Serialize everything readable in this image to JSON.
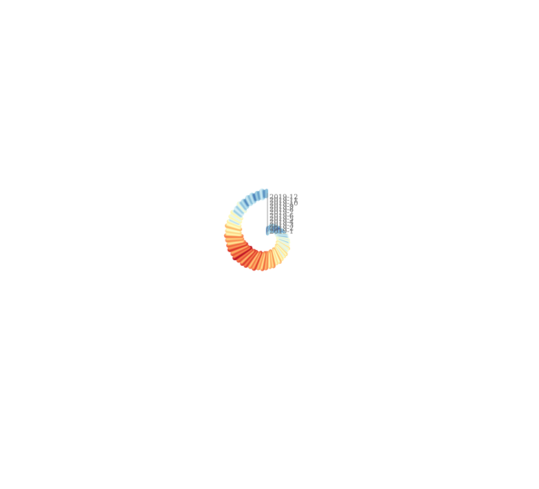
{
  "chart_data": {
    "type": "spiral-bar",
    "year": 2019,
    "months": [
      "2019-1",
      "2019-2",
      "2019-3",
      "2019-4",
      "2019-5",
      "2019-6",
      "2019-7",
      "2019-8",
      "2019-9",
      "2019-10",
      "2019-11",
      "2019-12"
    ],
    "value_min": 0,
    "value_max": 10,
    "color_scale": [
      "#313695",
      "#4575b4",
      "#74add1",
      "#abd9e9",
      "#e0f3f8",
      "#ffffbf",
      "#fee090",
      "#fdae61",
      "#f46d43",
      "#d73027",
      "#a50026"
    ],
    "monthly_profile": [
      {
        "month": "2019-1",
        "start": 1.0,
        "end": 2.6
      },
      {
        "month": "2019-2",
        "start": 2.6,
        "end": 1.2
      },
      {
        "month": "2019-3",
        "start": 1.2,
        "end": 3.4
      },
      {
        "month": "2019-4",
        "start": 3.4,
        "end": 4.6
      },
      {
        "month": "2019-5",
        "start": 4.6,
        "end": 5.4
      },
      {
        "month": "2019-6",
        "start": 5.4,
        "end": 6.8
      },
      {
        "month": "2019-7",
        "start": 6.8,
        "end": 7.6
      },
      {
        "month": "2019-8",
        "start": 7.6,
        "end": 8.4
      },
      {
        "month": "2019-9",
        "start": 8.4,
        "end": 6.6
      },
      {
        "month": "2019-10",
        "start": 6.6,
        "end": 4.4
      },
      {
        "month": "2019-11",
        "start": 4.4,
        "end": 2.6
      },
      {
        "month": "2019-12",
        "start": 2.6,
        "end": 2.2
      }
    ],
    "grid": false,
    "legend": "none"
  }
}
